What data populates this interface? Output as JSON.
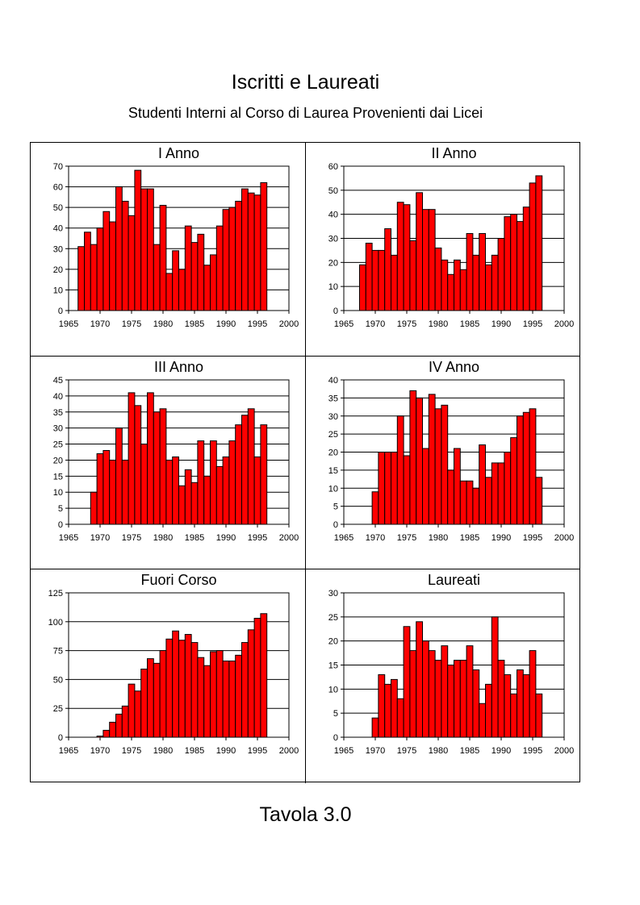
{
  "title": "Iscritti e Laureati",
  "subtitle": "Studenti Interni al Corso di Laurea Provenienti dai Licei",
  "footer": "Tavola 3.0",
  "colors": {
    "bar_fill": "#ff0000",
    "bar_stroke": "#000000",
    "grid": "#000000",
    "background": "#ffffff"
  },
  "chart_data": [
    {
      "type": "bar",
      "title": "I Anno",
      "xlim": [
        1965,
        2000
      ],
      "xticks": [
        1965,
        1970,
        1975,
        1980,
        1985,
        1990,
        1995,
        2000
      ],
      "ylim": [
        0,
        70
      ],
      "yticks": [
        0,
        10,
        20,
        30,
        40,
        50,
        60,
        70
      ],
      "grid": true,
      "x": [
        1967,
        1968,
        1969,
        1970,
        1971,
        1972,
        1973,
        1974,
        1975,
        1976,
        1977,
        1978,
        1979,
        1980,
        1981,
        1982,
        1983,
        1984,
        1985,
        1986,
        1987,
        1988,
        1989,
        1990,
        1991,
        1992,
        1993,
        1994,
        1995,
        1996
      ],
      "values": [
        31,
        38,
        32,
        40,
        48,
        43,
        60,
        53,
        46,
        68,
        59,
        59,
        32,
        51,
        18,
        29,
        20,
        41,
        33,
        37,
        22,
        27,
        41,
        49,
        50,
        53,
        59,
        57,
        56,
        62
      ]
    },
    {
      "type": "bar",
      "title": "II Anno",
      "xlim": [
        1965,
        2000
      ],
      "xticks": [
        1965,
        1970,
        1975,
        1980,
        1985,
        1990,
        1995,
        2000
      ],
      "ylim": [
        0,
        60
      ],
      "yticks": [
        0,
        10,
        20,
        30,
        40,
        50,
        60
      ],
      "grid": true,
      "x": [
        1968,
        1969,
        1970,
        1971,
        1972,
        1973,
        1974,
        1975,
        1976,
        1977,
        1978,
        1979,
        1980,
        1981,
        1982,
        1983,
        1984,
        1985,
        1986,
        1987,
        1988,
        1989,
        1990,
        1991,
        1992,
        1993,
        1994,
        1995,
        1996
      ],
      "values": [
        19,
        28,
        25,
        25,
        34,
        23,
        45,
        44,
        29,
        49,
        42,
        42,
        26,
        21,
        15,
        21,
        17,
        32,
        23,
        32,
        19,
        23,
        30,
        39,
        40,
        37,
        43,
        53,
        56
      ]
    },
    {
      "type": "bar",
      "title": "III Anno",
      "xlim": [
        1965,
        2000
      ],
      "xticks": [
        1965,
        1970,
        1975,
        1980,
        1985,
        1990,
        1995,
        2000
      ],
      "ylim": [
        0,
        45
      ],
      "yticks": [
        0,
        5,
        10,
        15,
        20,
        25,
        30,
        35,
        40,
        45
      ],
      "grid": true,
      "x": [
        1969,
        1970,
        1971,
        1972,
        1973,
        1974,
        1975,
        1976,
        1977,
        1978,
        1979,
        1980,
        1981,
        1982,
        1983,
        1984,
        1985,
        1986,
        1987,
        1988,
        1989,
        1990,
        1991,
        1992,
        1993,
        1994,
        1995,
        1996
      ],
      "values": [
        10,
        22,
        23,
        20,
        30,
        20,
        41,
        37,
        25,
        41,
        35,
        36,
        20,
        21,
        12,
        17,
        13,
        26,
        15,
        26,
        18,
        21,
        26,
        31,
        34,
        36,
        21,
        31
      ]
    },
    {
      "type": "bar",
      "title": "IV Anno",
      "xlim": [
        1965,
        2000
      ],
      "xticks": [
        1965,
        1970,
        1975,
        1980,
        1985,
        1990,
        1995,
        2000
      ],
      "ylim": [
        0,
        40
      ],
      "yticks": [
        0,
        5,
        10,
        15,
        20,
        25,
        30,
        35,
        40
      ],
      "grid": true,
      "x": [
        1970,
        1971,
        1972,
        1973,
        1974,
        1975,
        1976,
        1977,
        1978,
        1979,
        1980,
        1981,
        1982,
        1983,
        1984,
        1985,
        1986,
        1987,
        1988,
        1989,
        1990,
        1991,
        1992,
        1993,
        1994,
        1995,
        1996
      ],
      "values": [
        9,
        20,
        20,
        20,
        30,
        19,
        37,
        35,
        21,
        36,
        32,
        33,
        15,
        21,
        12,
        12,
        10,
        22,
        13,
        17,
        17,
        20,
        24,
        30,
        31,
        32,
        13
      ]
    },
    {
      "type": "bar",
      "title": "Fuori Corso",
      "xlim": [
        1965,
        2000
      ],
      "xticks": [
        1965,
        1970,
        1975,
        1980,
        1985,
        1990,
        1995,
        2000
      ],
      "ylim": [
        0,
        125
      ],
      "yticks": [
        0,
        25,
        50,
        75,
        100,
        125
      ],
      "grid": true,
      "x": [
        1970,
        1971,
        1972,
        1973,
        1974,
        1975,
        1976,
        1977,
        1978,
        1979,
        1980,
        1981,
        1982,
        1983,
        1984,
        1985,
        1986,
        1987,
        1988,
        1989,
        1990,
        1991,
        1992,
        1993,
        1994,
        1995,
        1996
      ],
      "values": [
        1,
        6,
        13,
        20,
        27,
        46,
        40,
        59,
        68,
        64,
        75,
        85,
        92,
        84,
        89,
        82,
        69,
        62,
        74,
        75,
        66,
        66,
        71,
        82,
        93,
        103,
        107
      ]
    },
    {
      "type": "bar",
      "title": "Laureati",
      "xlim": [
        1965,
        2000
      ],
      "xticks": [
        1965,
        1970,
        1975,
        1980,
        1985,
        1990,
        1995,
        2000
      ],
      "ylim": [
        0,
        30
      ],
      "yticks": [
        0,
        5,
        10,
        15,
        20,
        25,
        30
      ],
      "grid": true,
      "x": [
        1970,
        1971,
        1972,
        1973,
        1974,
        1975,
        1976,
        1977,
        1978,
        1979,
        1980,
        1981,
        1982,
        1983,
        1984,
        1985,
        1986,
        1987,
        1988,
        1989,
        1990,
        1991,
        1992,
        1993,
        1994,
        1995,
        1996
      ],
      "values": [
        4,
        13,
        11,
        12,
        8,
        23,
        18,
        24,
        20,
        18,
        16,
        19,
        15,
        16,
        16,
        19,
        14,
        7,
        11,
        25,
        16,
        13,
        9,
        14,
        13,
        18,
        9
      ]
    }
  ]
}
